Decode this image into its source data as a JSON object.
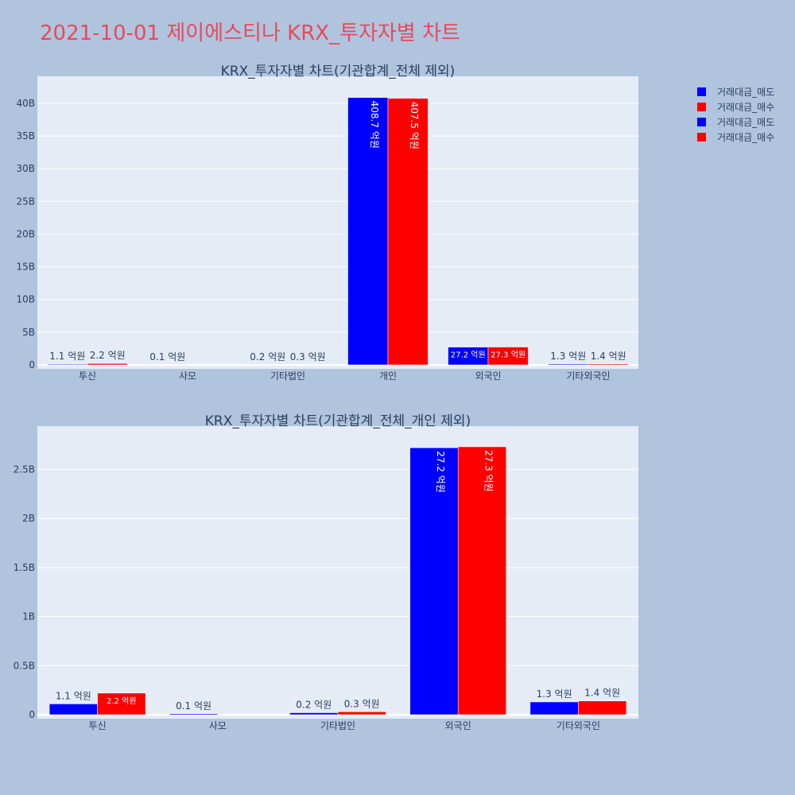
{
  "page_title": "2021-10-01 제이에스티나 KRX_투자자별 차트",
  "legend": [
    {
      "label": "거래대금_매도",
      "color": "#0000ff"
    },
    {
      "label": "거래대금_매수",
      "color": "#ff0000"
    },
    {
      "label": "거래대금_매도",
      "color": "#0000ff"
    },
    {
      "label": "거래대금_매수",
      "color": "#ff0000"
    }
  ],
  "chart_data": [
    {
      "type": "bar",
      "title": "KRX_투자자별 차트(기관합계_전체 제외)",
      "categories": [
        "투신",
        "사모",
        "기타법인",
        "개인",
        "외국인",
        "기타외국인"
      ],
      "ylim": [
        0,
        43500000000
      ],
      "yticks": [
        0,
        5000000000,
        10000000000,
        15000000000,
        20000000000,
        25000000000,
        30000000000,
        35000000000,
        40000000000
      ],
      "ytick_labels": [
        "0",
        "5B",
        "10B",
        "15B",
        "20B",
        "25B",
        "30B",
        "35B",
        "40B"
      ],
      "grid": true,
      "series": [
        {
          "name": "거래대금_매도",
          "color": "#0000ff",
          "values": [
            110000000,
            10000000,
            20000000,
            40870000000,
            2720000000,
            130000000
          ],
          "labels": [
            "1.1 억원",
            "0.1 억원",
            "0.2 억원",
            "408.7 억원",
            "27.2 억원",
            "1.3 억원"
          ]
        },
        {
          "name": "거래대금_매수",
          "color": "#ff0000",
          "values": [
            220000000,
            0,
            30000000,
            40750000000,
            2730000000,
            140000000
          ],
          "labels": [
            "2.2 억원",
            "",
            "0.3 억원",
            "407.5 억원",
            "27.3 억원",
            "1.4 억원"
          ]
        }
      ]
    },
    {
      "type": "bar",
      "title": "KRX_투자자별 차트(기관합계_전체_개인 제외)",
      "categories": [
        "투신",
        "사모",
        "기타법인",
        "외국인",
        "기타외국인"
      ],
      "ylim": [
        0,
        2900000000
      ],
      "yticks": [
        0,
        500000000,
        1000000000,
        1500000000,
        2000000000,
        2500000000
      ],
      "ytick_labels": [
        "0",
        "0.5B",
        "1B",
        "1.5B",
        "2B",
        "2.5B"
      ],
      "grid": true,
      "series": [
        {
          "name": "거래대금_매도",
          "color": "#0000ff",
          "values": [
            110000000,
            10000000,
            20000000,
            2720000000,
            130000000
          ],
          "labels": [
            "1.1 억원",
            "0.1 억원",
            "0.2 억원",
            "27.2 억원",
            "1.3 억원"
          ]
        },
        {
          "name": "거래대금_매수",
          "color": "#ff0000",
          "values": [
            220000000,
            0,
            30000000,
            2730000000,
            140000000
          ],
          "labels": [
            "2.2 억원",
            "",
            "0.3 억원",
            "27.3 억원",
            "1.4 억원"
          ]
        }
      ]
    }
  ]
}
